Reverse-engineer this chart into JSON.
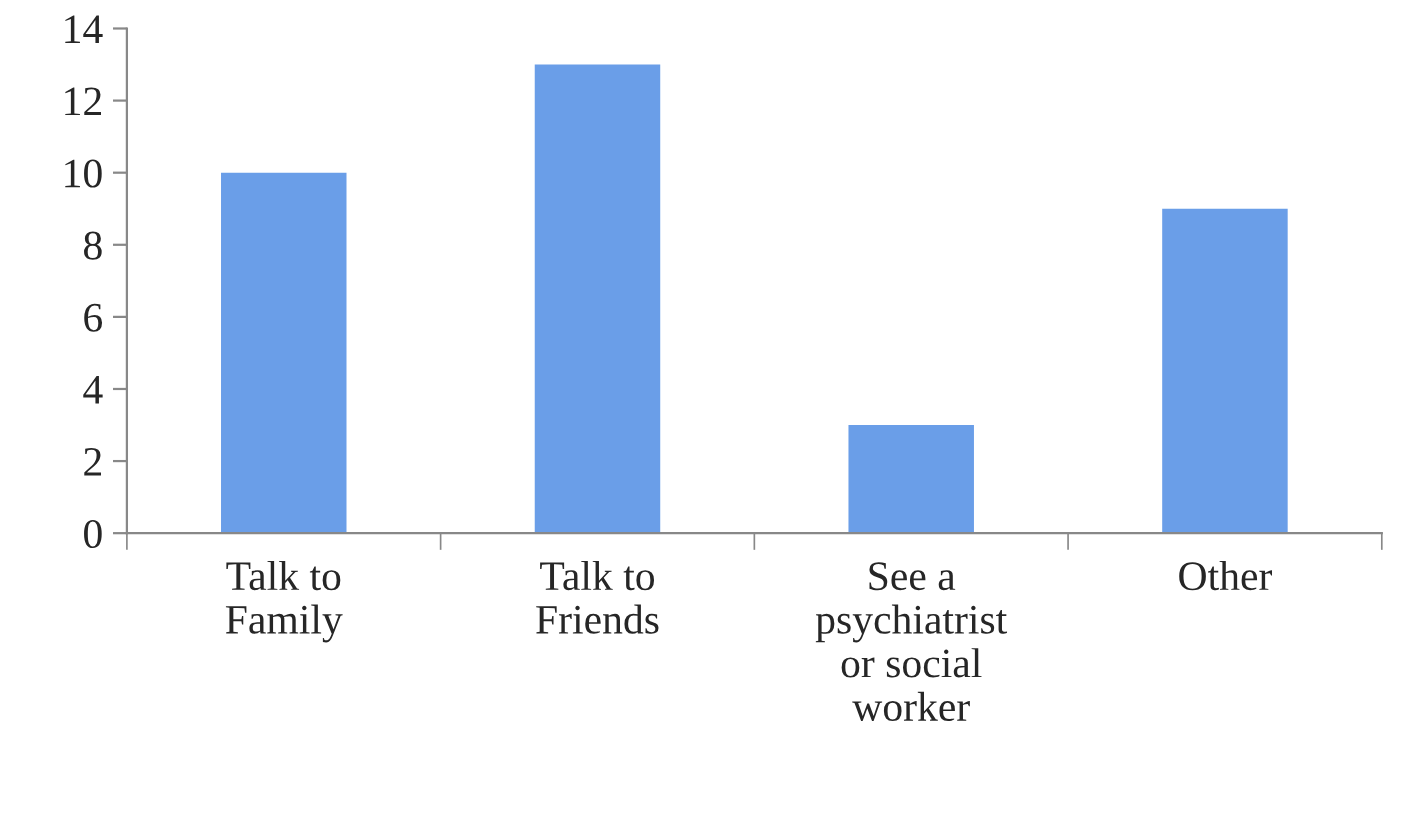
{
  "chart_data": {
    "type": "bar",
    "categories": [
      "Talk to\nFamily",
      "Talk to\nFriends",
      "See a\npsychiatrist\nor social\nworker",
      "Other"
    ],
    "values": [
      10,
      13,
      3,
      9
    ],
    "color": "#6a9ee8",
    "ylim": [
      0,
      14
    ],
    "yticks": [
      0,
      2,
      4,
      6,
      8,
      10,
      12,
      14
    ],
    "grid": false,
    "legend": false
  }
}
